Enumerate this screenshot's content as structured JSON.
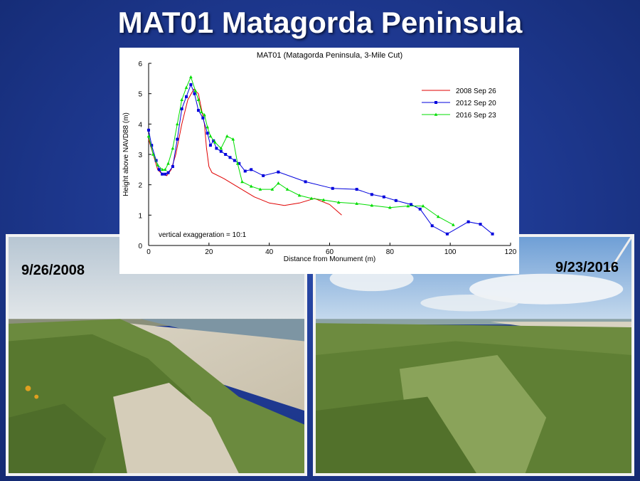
{
  "slide": {
    "title": "MAT01 Matagorda Peninsula"
  },
  "photos": [
    {
      "date": "9/26/2008"
    },
    {
      "date": "9/23/2016"
    }
  ],
  "colors": {
    "background": "#1f3a93",
    "series_2008": "#e00000",
    "series_2012": "#0000dd",
    "series_2016": "#00dd00"
  },
  "chart_data": {
    "type": "line",
    "title": "MAT01 (Matagorda Peninsula, 3-Mile Cut)",
    "xlabel": "Distance from Monument (m)",
    "ylabel": "Height above NAVD88 (m)",
    "xlim": [
      0,
      120
    ],
    "ylim": [
      0,
      6
    ],
    "xticks": [
      0,
      20,
      40,
      60,
      80,
      100,
      120
    ],
    "yticks": [
      0,
      1,
      2,
      3,
      4,
      5,
      6
    ],
    "grid": false,
    "legend_position": "top-right",
    "annotation": "vertical exaggeration = 10:1",
    "series": [
      {
        "name": "2008 Sep 26",
        "marker": "none",
        "x": [
          0,
          1.5,
          3,
          4.5,
          6,
          7.5,
          9,
          11,
          13,
          15,
          16.5,
          17.5,
          18.5,
          19.2,
          20,
          21,
          25,
          30,
          35,
          40,
          45,
          50,
          55,
          60,
          64
        ],
        "y": [
          3.5,
          3.0,
          2.5,
          2.35,
          2.3,
          2.5,
          3.0,
          4.0,
          4.8,
          5.15,
          5.0,
          4.5,
          4.0,
          3.2,
          2.6,
          2.4,
          2.2,
          1.9,
          1.6,
          1.4,
          1.32,
          1.4,
          1.55,
          1.35,
          1.0
        ]
      },
      {
        "name": "2012 Sep 20",
        "marker": "square",
        "x": [
          0,
          1,
          2.5,
          3.5,
          4.5,
          5.5,
          6.5,
          8,
          9.5,
          11,
          12.5,
          14,
          15.2,
          16.5,
          18,
          19.5,
          20.5,
          21.5,
          22.5,
          24,
          25.5,
          27,
          28.5,
          30,
          32,
          34,
          38,
          43,
          52,
          61,
          69,
          74,
          78,
          82,
          87,
          90,
          94,
          99,
          106,
          110,
          114
        ],
        "y": [
          3.8,
          3.3,
          2.8,
          2.5,
          2.35,
          2.35,
          2.4,
          2.6,
          3.5,
          4.5,
          4.9,
          5.3,
          5.0,
          4.45,
          4.2,
          3.7,
          3.3,
          3.45,
          3.2,
          3.1,
          3.0,
          2.9,
          2.8,
          2.7,
          2.45,
          2.5,
          2.3,
          2.42,
          2.1,
          1.88,
          1.85,
          1.68,
          1.6,
          1.48,
          1.35,
          1.2,
          0.65,
          0.38,
          0.78,
          0.7,
          0.38
        ]
      },
      {
        "name": "2016 Sep 23",
        "marker": "triangle",
        "x": [
          0,
          1.5,
          3,
          4.5,
          5.5,
          6.5,
          8,
          9.5,
          11,
          12.5,
          14,
          15.5,
          16.5,
          17.5,
          18.5,
          19.5,
          20.5,
          22,
          24,
          26,
          28,
          29.5,
          31,
          34,
          37,
          41,
          43,
          46,
          50,
          54,
          58,
          63,
          69,
          74,
          80,
          86,
          91,
          96,
          101
        ],
        "y": [
          3.6,
          3.0,
          2.65,
          2.5,
          2.5,
          2.7,
          3.2,
          4.0,
          4.8,
          5.2,
          5.55,
          5.1,
          4.8,
          4.4,
          4.3,
          3.9,
          3.6,
          3.4,
          3.2,
          3.6,
          3.5,
          2.7,
          2.1,
          1.95,
          1.85,
          1.85,
          2.05,
          1.85,
          1.65,
          1.55,
          1.5,
          1.42,
          1.38,
          1.32,
          1.25,
          1.3,
          1.3,
          0.95,
          0.68
        ]
      }
    ]
  }
}
